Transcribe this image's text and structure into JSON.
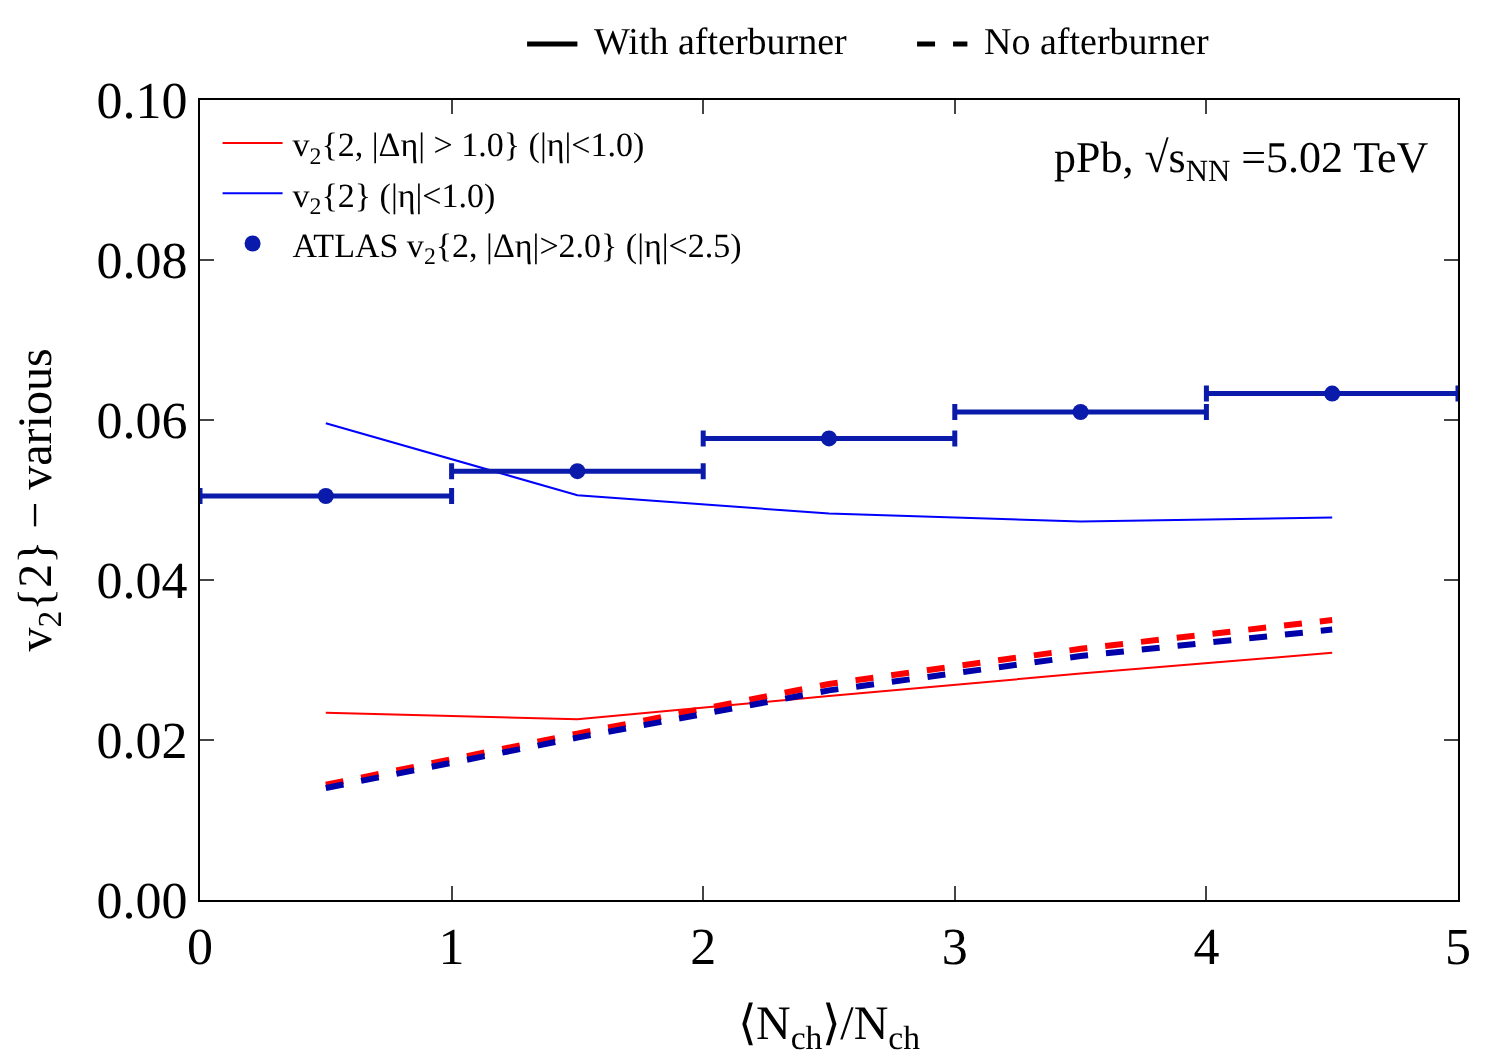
{
  "chart_data": {
    "type": "line",
    "xlabel": "⟨N$_{ch}$⟩/N$_{ch}$",
    "ylabel": "v$_{2}${2} − various",
    "x": [
      0.5,
      1.5,
      2.5,
      3.5,
      4.5
    ],
    "series": [
      {
        "name": "v$_{2}${2, |Δη| > 1.0} (|η|<1.0)",
        "color": "#ff0000",
        "line_style": "solid",
        "values": [
          0.0234,
          0.0226,
          0.0255,
          0.0283,
          0.0309
        ]
      },
      {
        "name": "v$_{2}${2} (|η|<1.0)",
        "color": "#0000ff",
        "line_style": "solid",
        "values": [
          0.0596,
          0.0506,
          0.0483,
          0.0473,
          0.0478
        ]
      },
      {
        "color": "#ff0000",
        "line_style": "dashed",
        "values": [
          0.0144,
          0.0208,
          0.027,
          0.0314,
          0.035
        ]
      },
      {
        "color": "#0000aa",
        "line_style": "dashed",
        "values": [
          0.014,
          0.0203,
          0.0262,
          0.0305,
          0.0338
        ]
      },
      {
        "name": "ATLAS v$_{2}${2, |Δη|>2.0} (|η|<2.5)",
        "type": "scatter",
        "marker": "circle",
        "color": "#0a1aaa",
        "values": [
          0.0505,
          0.0536,
          0.0577,
          0.061,
          0.0633
        ],
        "xerrors": [
          0.5,
          0.5,
          0.5,
          0.5,
          0.5
        ]
      }
    ],
    "xlim": [
      0,
      5
    ],
    "xticks": [
      0,
      1,
      2,
      3,
      4,
      5
    ],
    "ylim": [
      0,
      0.1
    ],
    "yticks": [
      {
        "value": 0,
        "label": "0.00"
      },
      {
        "value": 0.02,
        "label": "0.02"
      },
      {
        "value": 0.04,
        "label": "0.04"
      },
      {
        "value": 0.06,
        "label": "0.06"
      },
      {
        "value": 0.08,
        "label": "0.08"
      },
      {
        "value": 0.1,
        "label": "0.10"
      }
    ],
    "annotations": [
      "With afterburner",
      "No afterburner",
      "pPb, √s$_{NN}$ =5.02 TeV"
    ],
    "legend": "top left"
  }
}
